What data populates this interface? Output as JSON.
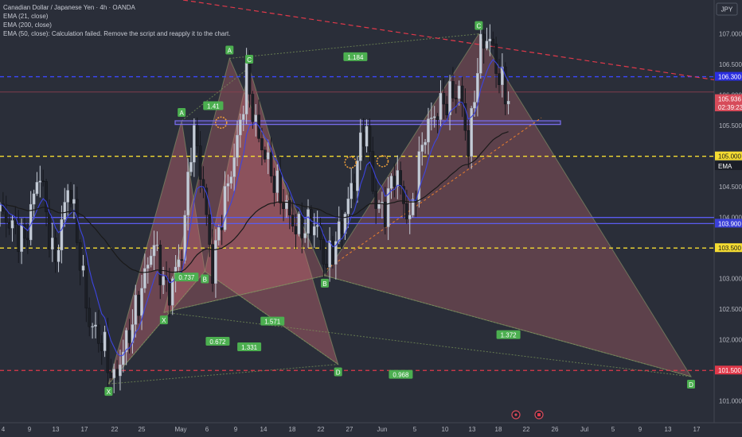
{
  "header": {
    "title": "Canadian Dollar / Japanese Yen · 4h · OANDA",
    "indicators": [
      "EMA (21, close)",
      "EMA (200, close)",
      "EMA (50, close): Calculation failed. Remove the script and reapply it to the chart."
    ]
  },
  "chart_data": {
    "type": "candlestick",
    "symbol": "CADJPY",
    "currency_label": "JPY",
    "ylim": [
      100.75,
      107.45
    ],
    "x_ticks": [
      "4",
      "9",
      "13",
      "17",
      "22",
      "25",
      "May",
      "6",
      "9",
      "14",
      "18",
      "22",
      "27",
      "Jun",
      "5",
      "10",
      "13",
      "18",
      "22",
      "26",
      "Jul",
      "5",
      "9",
      "13",
      "17"
    ],
    "y_ticks": [
      101.0,
      101.5,
      102.0,
      102.5,
      103.0,
      103.5,
      104.0,
      104.5,
      105.0,
      105.5,
      106.0,
      106.5,
      107.0
    ],
    "price_labels": [
      {
        "text": "106.300",
        "value": 106.3,
        "color": "#2a2ee0"
      },
      {
        "text": "EMA",
        "value": 105.82,
        "color": "#3a3fd8"
      },
      {
        "text": "105.936",
        "value": 105.936,
        "color": "#d74b5a"
      },
      {
        "text": "02:39:23",
        "value": 105.8,
        "color": "#d74b5a"
      },
      {
        "text": "105.000",
        "value": 105.0,
        "color": "#f5dc32"
      },
      {
        "text": "EMA",
        "value": 104.84,
        "color": "#1b1e27"
      },
      {
        "text": "103.900",
        "value": 103.9,
        "color": "#3a3fd8"
      },
      {
        "text": "103.500",
        "value": 103.5,
        "color": "#f5dc32"
      },
      {
        "text": "101.500",
        "value": 101.5,
        "color": "#e0394a"
      }
    ],
    "horizontal_lines": [
      {
        "value": 106.3,
        "color": "#3b48ff",
        "style": "dashed"
      },
      {
        "value": 105.0,
        "color": "#f5dc32",
        "style": "dashed"
      },
      {
        "value": 104.0,
        "color": "#5a5cf0",
        "style": "solid"
      },
      {
        "value": 103.9,
        "color": "#5a5cf0",
        "style": "solid"
      },
      {
        "value": 103.5,
        "color": "#f5dc32",
        "style": "dashed"
      },
      {
        "value": 101.5,
        "color": "#e0394a",
        "style": "dashed"
      },
      {
        "value": 106.05,
        "color": "#8a4050",
        "style": "solid"
      }
    ],
    "zone": {
      "from": 105.52,
      "to": 105.58
    },
    "pattern_points": [
      {
        "label": "X",
        "t": 22,
        "price": 101.28
      },
      {
        "label": "A",
        "t": 36.8,
        "price": 105.58
      },
      {
        "label": "B",
        "t": 41.5,
        "price": 103.12
      },
      {
        "label": "C",
        "t": 50.5,
        "price": 106.45
      },
      {
        "label": "D",
        "t": 68.5,
        "price": 101.6
      },
      {
        "label": "X",
        "t": 33.2,
        "price": 102.45
      },
      {
        "label": "A",
        "t": 46.5,
        "price": 106.6
      },
      {
        "label": "B",
        "t": 65.8,
        "price": 103.05
      },
      {
        "label": "C",
        "t": 97,
        "price": 107.0
      },
      {
        "label": "D",
        "t": 140,
        "price": 101.4
      }
    ],
    "ratios": [
      {
        "text": "1.41",
        "t": 43.2,
        "price": 105.82
      },
      {
        "text": "1.184",
        "t": 72,
        "price": 106.62
      },
      {
        "text": "0.737",
        "t": 37.8,
        "price": 103.02
      },
      {
        "text": "1.571",
        "t": 55.2,
        "price": 102.3
      },
      {
        "text": "0.672",
        "t": 44.1,
        "price": 101.97
      },
      {
        "text": "1.331",
        "t": 50.5,
        "price": 101.88
      },
      {
        "text": "0.968",
        "t": 81.2,
        "price": 101.43
      },
      {
        "text": "1.372",
        "t": 103,
        "price": 102.08
      }
    ]
  }
}
